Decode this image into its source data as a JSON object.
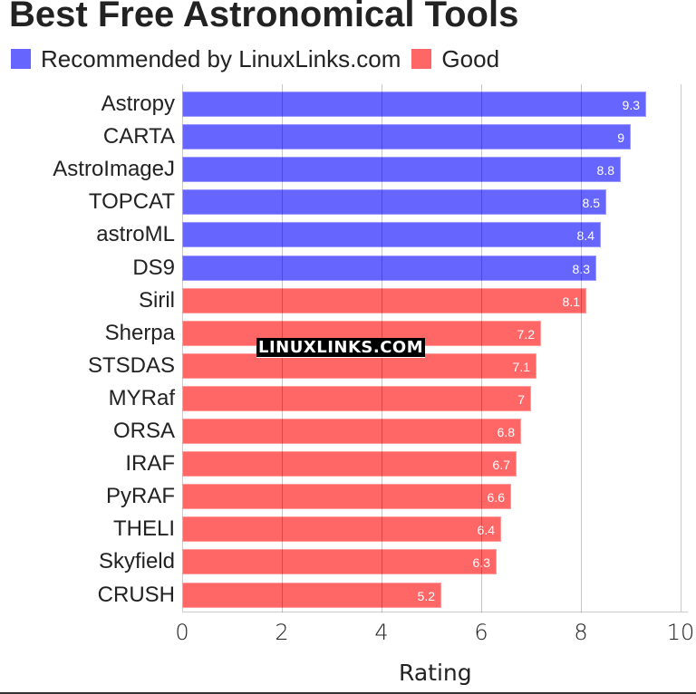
{
  "title": "Best Free Astronomical Tools",
  "legend": [
    {
      "label": "Recommended by LinuxLinks.com",
      "color": "#6666ff"
    },
    {
      "label": "Good",
      "color": "#ff6666"
    }
  ],
  "watermark": "LINUXLINKS.COM",
  "chart_data": {
    "type": "bar",
    "orientation": "horizontal",
    "title": "Best Free Astronomical Tools",
    "xlabel": "Rating",
    "ylabel": "",
    "xlim": [
      0,
      10
    ],
    "xticks": [
      "0",
      "2",
      "4",
      "6",
      "8",
      "10"
    ],
    "grid": true,
    "legend_position": "top",
    "categories": [
      "Astropy",
      "CARTA",
      "AstroImageJ",
      "TOPCAT",
      "astroML",
      "DS9",
      "Siril",
      "Sherpa",
      "STSDAS",
      "MYRaf",
      "ORSA",
      "IRAF",
      "PyRAF",
      "THELI",
      "Skyfield",
      "CRUSH"
    ],
    "values": [
      9.3,
      9,
      8.8,
      8.5,
      8.4,
      8.3,
      8.1,
      7.2,
      7.1,
      7,
      6.8,
      6.7,
      6.6,
      6.4,
      6.3,
      5.2
    ],
    "value_labels": [
      "9.3",
      "9",
      "8.8",
      "8.5",
      "8.4",
      "8.3",
      "8.1",
      "7.2",
      "7.1",
      "7",
      "6.8",
      "6.7",
      "6.6",
      "6.4",
      "6.3",
      "5.2"
    ],
    "groups": [
      "Recommended by LinuxLinks.com",
      "Recommended by LinuxLinks.com",
      "Recommended by LinuxLinks.com",
      "Recommended by LinuxLinks.com",
      "Recommended by LinuxLinks.com",
      "Recommended by LinuxLinks.com",
      "Good",
      "Good",
      "Good",
      "Good",
      "Good",
      "Good",
      "Good",
      "Good",
      "Good",
      "Good"
    ],
    "series": [
      {
        "name": "Recommended by LinuxLinks.com",
        "color": "#6666ff",
        "categories": [
          "Astropy",
          "CARTA",
          "AstroImageJ",
          "TOPCAT",
          "astroML",
          "DS9"
        ],
        "values": [
          9.3,
          9,
          8.8,
          8.5,
          8.4,
          8.3
        ]
      },
      {
        "name": "Good",
        "color": "#ff6666",
        "categories": [
          "Siril",
          "Sherpa",
          "STSDAS",
          "MYRaf",
          "ORSA",
          "IRAF",
          "PyRAF",
          "THELI",
          "Skyfield",
          "CRUSH"
        ],
        "values": [
          8.1,
          7.2,
          7.1,
          7,
          6.8,
          6.7,
          6.6,
          6.4,
          6.3,
          5.2
        ]
      }
    ]
  }
}
